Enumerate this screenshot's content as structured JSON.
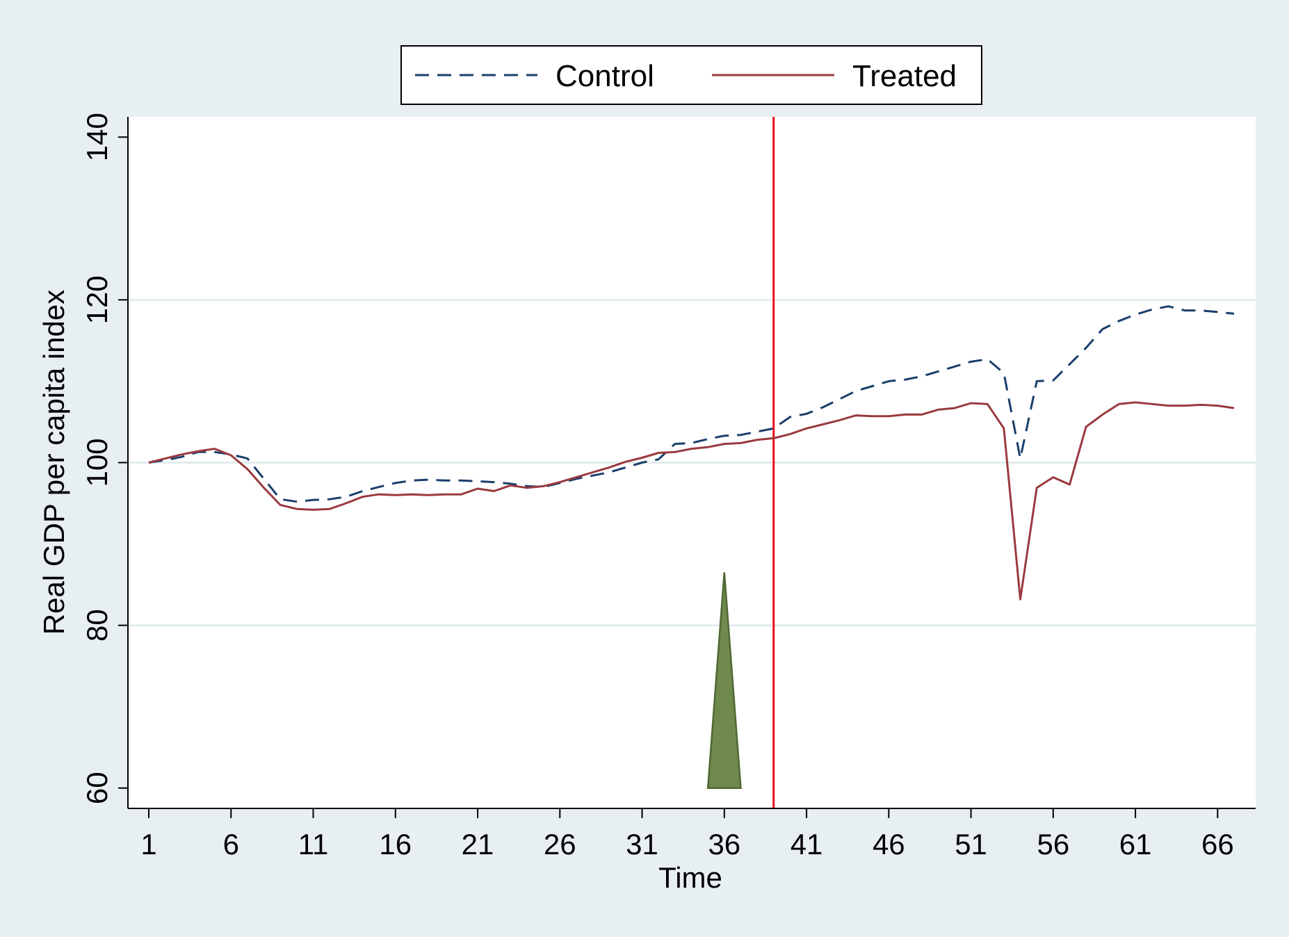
{
  "chart_data": {
    "type": "line",
    "title": "",
    "xlabel": "Time",
    "ylabel": "Real GDP per capita index",
    "xlim": [
      1,
      67
    ],
    "ylim": [
      57.5,
      142.5
    ],
    "x_ticks": [
      1,
      6,
      11,
      16,
      21,
      26,
      31,
      36,
      41,
      46,
      51,
      56,
      61,
      66
    ],
    "y_ticks": [
      60,
      80,
      100,
      120,
      140
    ],
    "grid": "horizontal",
    "legend_position": "top-center",
    "treatment_line_x": 39,
    "treatment_line_color": "#e8101c",
    "triangle_marker": {
      "x": 36,
      "y_base": 60,
      "y_top": 86.5,
      "half_width": 1.0,
      "color": "#6f8a4c",
      "edge_color": "#4f6833"
    },
    "x": [
      1,
      2,
      3,
      4,
      5,
      6,
      7,
      8,
      9,
      10,
      11,
      12,
      13,
      14,
      15,
      16,
      17,
      18,
      19,
      20,
      21,
      22,
      23,
      24,
      25,
      26,
      27,
      28,
      29,
      30,
      31,
      32,
      33,
      34,
      35,
      36,
      37,
      38,
      39,
      40,
      41,
      42,
      43,
      44,
      45,
      46,
      47,
      48,
      49,
      50,
      51,
      52,
      53,
      54,
      55,
      56,
      57,
      58,
      59,
      60,
      61,
      62,
      63,
      64,
      65,
      66,
      67
    ],
    "series": [
      {
        "name": "Control",
        "color": "#1a3f6b",
        "style": "dashed",
        "values": [
          100.0,
          100.3,
          100.7,
          101.3,
          101.3,
          101.0,
          100.5,
          98.0,
          95.5,
          95.2,
          95.4,
          95.5,
          95.8,
          96.5,
          97.0,
          97.5,
          97.8,
          97.9,
          97.8,
          97.8,
          97.7,
          97.6,
          97.4,
          97.1,
          97.0,
          97.5,
          98.0,
          98.4,
          98.8,
          99.4,
          100.0,
          100.4,
          102.3,
          102.4,
          102.9,
          103.3,
          103.4,
          103.8,
          104.2,
          105.6,
          106.0,
          106.8,
          107.8,
          108.8,
          109.4,
          110.0,
          110.2,
          110.6,
          111.2,
          111.8,
          112.4,
          112.7,
          111.0,
          100.5,
          110.0,
          110.1,
          112.1,
          114.1,
          116.4,
          117.4,
          118.2,
          118.8,
          119.2,
          118.7,
          118.7,
          118.5,
          118.3
        ]
      },
      {
        "name": "Treated",
        "color": "#9a3a3f",
        "style": "solid",
        "values": [
          100.0,
          100.5,
          101.0,
          101.4,
          101.7,
          100.9,
          99.2,
          96.9,
          94.8,
          94.3,
          94.2,
          94.3,
          95.0,
          95.8,
          96.1,
          96.0,
          96.1,
          96.0,
          96.1,
          96.1,
          96.8,
          96.5,
          97.2,
          96.9,
          97.1,
          97.6,
          98.2,
          98.8,
          99.4,
          100.1,
          100.6,
          101.2,
          101.3,
          101.7,
          101.9,
          102.3,
          102.4,
          102.8,
          103.0,
          103.5,
          104.2,
          104.7,
          105.2,
          105.8,
          105.7,
          105.7,
          105.9,
          105.9,
          106.5,
          106.7,
          107.3,
          107.2,
          104.2,
          83.2,
          96.9,
          98.2,
          97.3,
          104.4,
          105.9,
          107.2,
          107.4,
          107.2,
          107.0,
          107.0,
          107.1,
          107.0,
          106.7
        ]
      }
    ]
  }
}
